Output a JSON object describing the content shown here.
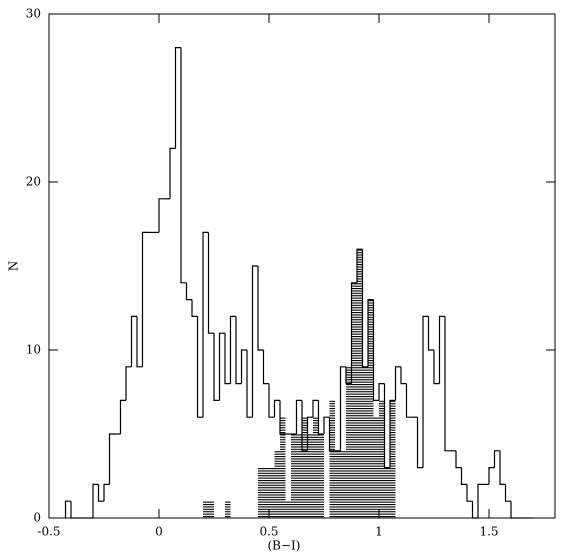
{
  "chart_data": {
    "type": "histogram",
    "xlabel": "(B−I)",
    "ylabel": "N",
    "xlim": [
      -0.5,
      1.8
    ],
    "ylim": [
      0,
      30
    ],
    "xticks": [
      -0.5,
      0,
      0.5,
      1,
      1.5
    ],
    "yticks": [
      0,
      10,
      20,
      30
    ],
    "bins": [
      -0.425,
      -0.4,
      -0.375,
      -0.35,
      -0.325,
      -0.3,
      -0.275,
      -0.25,
      -0.225,
      -0.2,
      -0.175,
      -0.15,
      -0.125,
      -0.1,
      -0.075,
      -0.05,
      -0.025,
      0,
      0.025,
      0.05,
      0.075,
      0.1,
      0.125,
      0.15,
      0.175,
      0.2,
      0.225,
      0.25,
      0.275,
      0.3,
      0.325,
      0.35,
      0.375,
      0.4,
      0.425,
      0.45,
      0.475,
      0.5,
      0.525,
      0.55,
      0.575,
      0.6,
      0.625,
      0.65,
      0.675,
      0.7,
      0.725,
      0.75,
      0.775,
      0.8,
      0.825,
      0.85,
      0.875,
      0.9,
      0.925,
      0.95,
      0.975,
      1,
      1.025,
      1.05,
      1.075,
      1.1,
      1.125,
      1.15,
      1.175,
      1.2,
      1.225,
      1.25,
      1.275,
      1.3,
      1.325,
      1.35,
      1.375,
      1.4,
      1.425,
      1.45,
      1.475,
      1.5,
      1.525,
      1.55,
      1.575,
      1.6,
      1.625,
      1.65,
      1.675,
      1.7
    ],
    "series": [
      {
        "style": "step",
        "color": "#000000",
        "values": [
          1,
          0,
          0,
          0,
          0,
          2,
          1,
          2,
          5,
          5,
          7,
          9,
          12,
          9,
          17,
          17,
          17,
          19,
          19,
          22,
          28,
          14,
          13,
          12,
          6,
          17,
          11,
          7,
          11,
          8,
          12,
          8,
          10,
          6,
          15,
          10,
          8,
          6,
          7,
          5,
          5,
          5,
          7,
          4,
          6,
          7,
          5,
          6,
          4,
          4,
          9,
          8,
          14,
          16,
          9,
          13,
          7,
          8,
          3,
          7,
          9,
          8,
          6,
          6,
          3,
          12,
          10,
          8,
          12,
          4,
          4,
          3,
          2,
          1,
          0,
          2,
          2,
          3,
          4,
          2,
          1,
          0,
          0,
          0,
          0
        ]
      },
      {
        "style": "hatched",
        "color": "#000000",
        "values": [
          0,
          0,
          0,
          0,
          0,
          0,
          0,
          0,
          0,
          0,
          0,
          0,
          0,
          0,
          0,
          0,
          0,
          0,
          0,
          0,
          0,
          0,
          0,
          0,
          0,
          1,
          1,
          0,
          0,
          1,
          0,
          0,
          0,
          0,
          0,
          3,
          3,
          3,
          4,
          6,
          1,
          5,
          5,
          6,
          5,
          6,
          5,
          0,
          7,
          4,
          4,
          9,
          14,
          16,
          9,
          13,
          6,
          7,
          3,
          7,
          0,
          0,
          0,
          0,
          0,
          0,
          0,
          0,
          0,
          0,
          0,
          0,
          0,
          0,
          0,
          0,
          0,
          0,
          0,
          0,
          0,
          0,
          0,
          0,
          0
        ]
      }
    ]
  }
}
